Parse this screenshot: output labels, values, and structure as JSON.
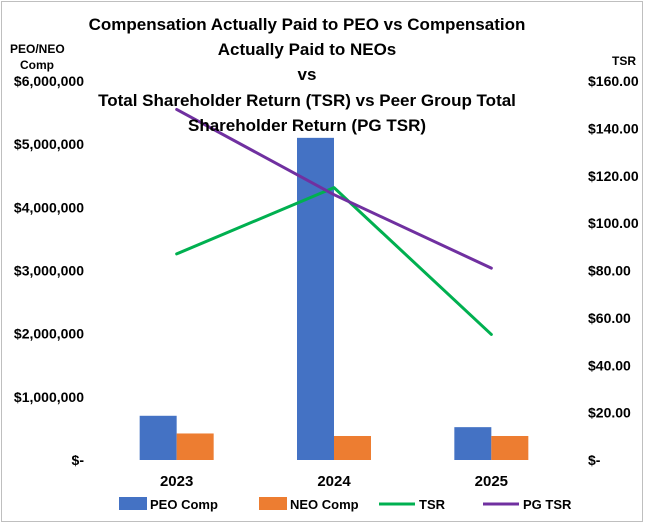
{
  "chart_data": {
    "type": "bar",
    "title_lines": [
      "Compensation Actually Paid to PEO vs Compensation",
      "Actually Paid to NEOs",
      "vs",
      "Total Shareholder Return (TSR) vs Peer Group Total",
      "Shareholder Return (PG TSR)"
    ],
    "y_left_label_lines": [
      "PEO/NEO",
      "Comp"
    ],
    "y_right_label": "TSR",
    "categories": [
      "2023",
      "2024",
      "2025"
    ],
    "y_left": {
      "min": 0,
      "max": 6000000,
      "tick_values": [
        0,
        1000000,
        2000000,
        3000000,
        4000000,
        5000000,
        6000000
      ],
      "tick_labels": [
        "$-",
        "$1,000,000",
        "$2,000,000",
        "$3,000,000",
        "$4,000,000",
        "$5,000,000",
        "$6,000,000"
      ]
    },
    "y_right": {
      "min": 0,
      "max": 160,
      "tick_values": [
        0,
        20,
        40,
        60,
        80,
        100,
        120,
        140,
        160
      ],
      "tick_labels": [
        "$-",
        "$20.00",
        "$40.00",
        "$60.00",
        "$80.00",
        "$100.00",
        "$120.00",
        "$140.00",
        "$160.00"
      ]
    },
    "bar_series": [
      {
        "name": "PEO Comp",
        "color": "#4472c4",
        "axis": "left",
        "values": [
          700000,
          5100000,
          520000
        ]
      },
      {
        "name": "NEO Comp",
        "color": "#ed7d31",
        "axis": "left",
        "values": [
          420000,
          380000,
          380000
        ]
      }
    ],
    "line_series": [
      {
        "name": "TSR",
        "color": "#00b050",
        "axis": "right",
        "values": [
          87,
          115,
          53
        ]
      },
      {
        "name": "PG TSR",
        "color": "#7030a0",
        "axis": "right",
        "values": [
          148,
          112,
          81
        ]
      }
    ],
    "legend_position": "bottom",
    "grid": false
  }
}
